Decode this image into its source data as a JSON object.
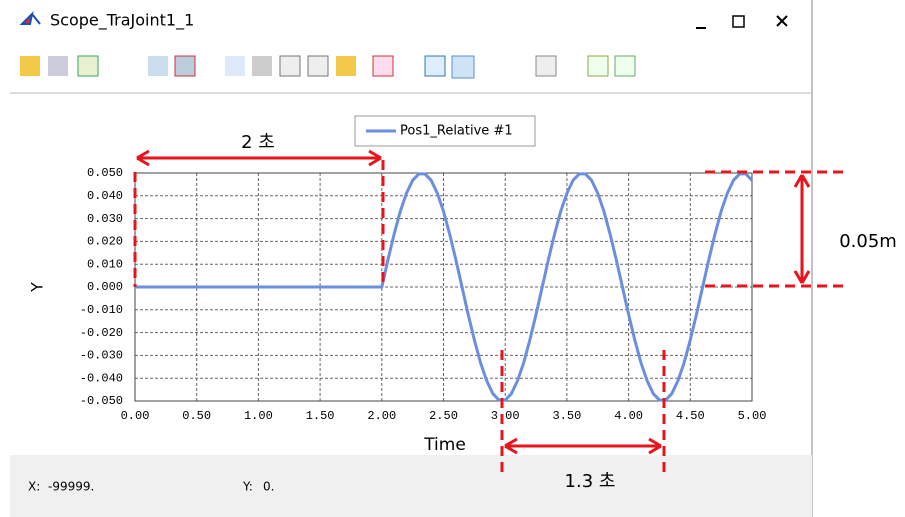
{
  "window": {
    "title": "Scope_TraJoint1_1"
  },
  "chart_data": {
    "type": "line",
    "x": [
      0,
      2,
      2.05,
      2.1,
      2.15,
      2.2,
      2.25,
      2.3,
      2.35,
      2.4,
      2.45,
      2.5,
      2.55,
      2.6,
      2.65,
      2.7,
      2.75,
      2.8,
      2.85,
      2.9,
      2.95,
      3,
      3.05,
      3.1,
      3.15,
      3.2,
      3.25,
      3.3,
      3.35,
      3.4,
      3.45,
      3.5,
      3.55,
      3.6,
      3.65,
      3.7,
      3.75,
      3.8,
      3.85,
      3.9,
      3.95,
      4,
      4.05,
      4.1,
      4.15,
      4.2,
      4.25,
      4.3,
      4.35,
      4.4,
      4.45,
      4.5,
      4.55,
      4.6,
      4.65,
      4.7,
      4.75,
      4.8,
      4.85,
      4.9,
      4.95,
      5
    ],
    "series": [
      {
        "name": "Pos1_Relative #1",
        "color": "#6b8fe0",
        "values": [
          0,
          0,
          0.012,
          0.0232,
          0.0332,
          0.0411,
          0.0468,
          0.0496,
          0.0496,
          0.0468,
          0.0411,
          0.0332,
          0.0232,
          0.012,
          0,
          -0.012,
          -0.0232,
          -0.0332,
          -0.0411,
          -0.0468,
          -0.0496,
          -0.0496,
          -0.0468,
          -0.0411,
          -0.0332,
          -0.0232,
          -0.012,
          0,
          0.012,
          0.0232,
          0.0332,
          0.0411,
          0.0468,
          0.0496,
          0.0496,
          0.0468,
          0.0411,
          0.0332,
          0.0232,
          0.012,
          0,
          -0.012,
          -0.0232,
          -0.0332,
          -0.0411,
          -0.0468,
          -0.0496,
          -0.0496,
          -0.0468,
          -0.0411,
          -0.0332,
          -0.0232,
          -0.012,
          0,
          0.012,
          0.0232,
          0.0332,
          0.0411,
          0.0468,
          0.0496,
          0.0496,
          0.0468
        ]
      }
    ],
    "xlim": [
      0,
      5
    ],
    "ylim": [
      -0.05,
      0.05
    ],
    "xticks": [
      {
        "value": 0,
        "label": "0.00"
      },
      {
        "value": 0.5,
        "label": "0.50"
      },
      {
        "value": 1,
        "label": "1.00"
      },
      {
        "value": 1.5,
        "label": "1.50"
      },
      {
        "value": 2,
        "label": "2.00"
      },
      {
        "value": 2.5,
        "label": "2.50"
      },
      {
        "value": 3,
        "label": "3.00"
      },
      {
        "value": 3.5,
        "label": "3.50"
      },
      {
        "value": 4,
        "label": "4.00"
      },
      {
        "value": 4.5,
        "label": "4.50"
      },
      {
        "value": 5,
        "label": "5.00"
      }
    ],
    "yticks": [
      {
        "value": 0.05,
        "label": "0.050"
      },
      {
        "value": 0.04,
        "label": "0.040"
      },
      {
        "value": 0.03,
        "label": "0.030"
      },
      {
        "value": 0.02,
        "label": "0.020"
      },
      {
        "value": 0.01,
        "label": "0.010"
      },
      {
        "value": 0,
        "label": "0.000"
      },
      {
        "value": -0.01,
        "label": "-0.010"
      },
      {
        "value": -0.02,
        "label": "-0.020"
      },
      {
        "value": -0.03,
        "label": "-0.030"
      },
      {
        "value": -0.04,
        "label": "-0.040"
      },
      {
        "value": -0.05,
        "label": "-0.050"
      }
    ],
    "x_label": "Time",
    "y_label": "Y",
    "grid": true,
    "annotations": [
      "2 초",
      "1.3 초",
      "0.05m"
    ]
  },
  "status": {
    "x_label": "X:",
    "x_value": "-99999.",
    "y_label": "Y:",
    "y_value": "0."
  }
}
